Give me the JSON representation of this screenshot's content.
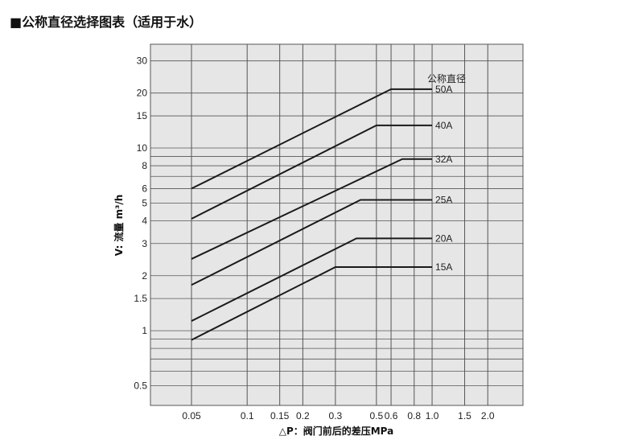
{
  "title": "■公称直径选择图表（适用于水）",
  "chart_data": {
    "type": "line",
    "xlabel": "△P：阀门前后的差压MPa",
    "ylabel": "V: 流量 m³/h",
    "x_scale": "log",
    "y_scale": "log",
    "xlim": [
      0.03,
      3.1
    ],
    "ylim": [
      0.39,
      37
    ],
    "grid": true,
    "background": "#e6e6e6",
    "line_color": "#1a1a1a",
    "x_ticks": [
      0.05,
      0.1,
      0.15,
      0.2,
      0.3,
      0.5,
      0.6,
      0.8,
      1.0,
      1.5,
      2.0
    ],
    "x_tick_labels": [
      "0.05",
      "0.1",
      "0.15",
      "0.2",
      "0.3",
      "0.5",
      "0.6",
      "0.8",
      "1.0",
      "1.5",
      "2.0"
    ],
    "y_gridlines": [
      0.5,
      0.6,
      0.7,
      0.8,
      0.9,
      1,
      1.5,
      2,
      3,
      4,
      5,
      6,
      7,
      8,
      9,
      10,
      15,
      20,
      30
    ],
    "y_ticks": [
      0.5,
      1,
      1.5,
      2,
      3,
      4,
      5,
      6,
      8,
      10,
      15,
      20,
      30
    ],
    "y_tick_labels": [
      "0.5",
      "1",
      "1.5",
      "2",
      "3",
      "4",
      "5",
      "6",
      "8",
      "10",
      "15",
      "20",
      "30"
    ],
    "legend_title": "公称直径",
    "series": [
      {
        "name": "50A",
        "x": [
          0.05,
          0.6,
          1.0
        ],
        "y": [
          6.0,
          21,
          21
        ]
      },
      {
        "name": "40A",
        "x": [
          0.05,
          0.5,
          1.0
        ],
        "y": [
          4.1,
          13.3,
          13.3
        ]
      },
      {
        "name": "32A",
        "x": [
          0.05,
          0.69,
          1.0
        ],
        "y": [
          2.47,
          8.7,
          8.7
        ]
      },
      {
        "name": "25A",
        "x": [
          0.05,
          0.41,
          1.0
        ],
        "y": [
          1.78,
          5.2,
          5.2
        ]
      },
      {
        "name": "20A",
        "x": [
          0.05,
          0.39,
          1.0
        ],
        "y": [
          1.13,
          3.2,
          3.2
        ]
      },
      {
        "name": "15A",
        "x": [
          0.05,
          0.3,
          1.0
        ],
        "y": [
          0.89,
          2.23,
          2.23
        ]
      }
    ]
  }
}
